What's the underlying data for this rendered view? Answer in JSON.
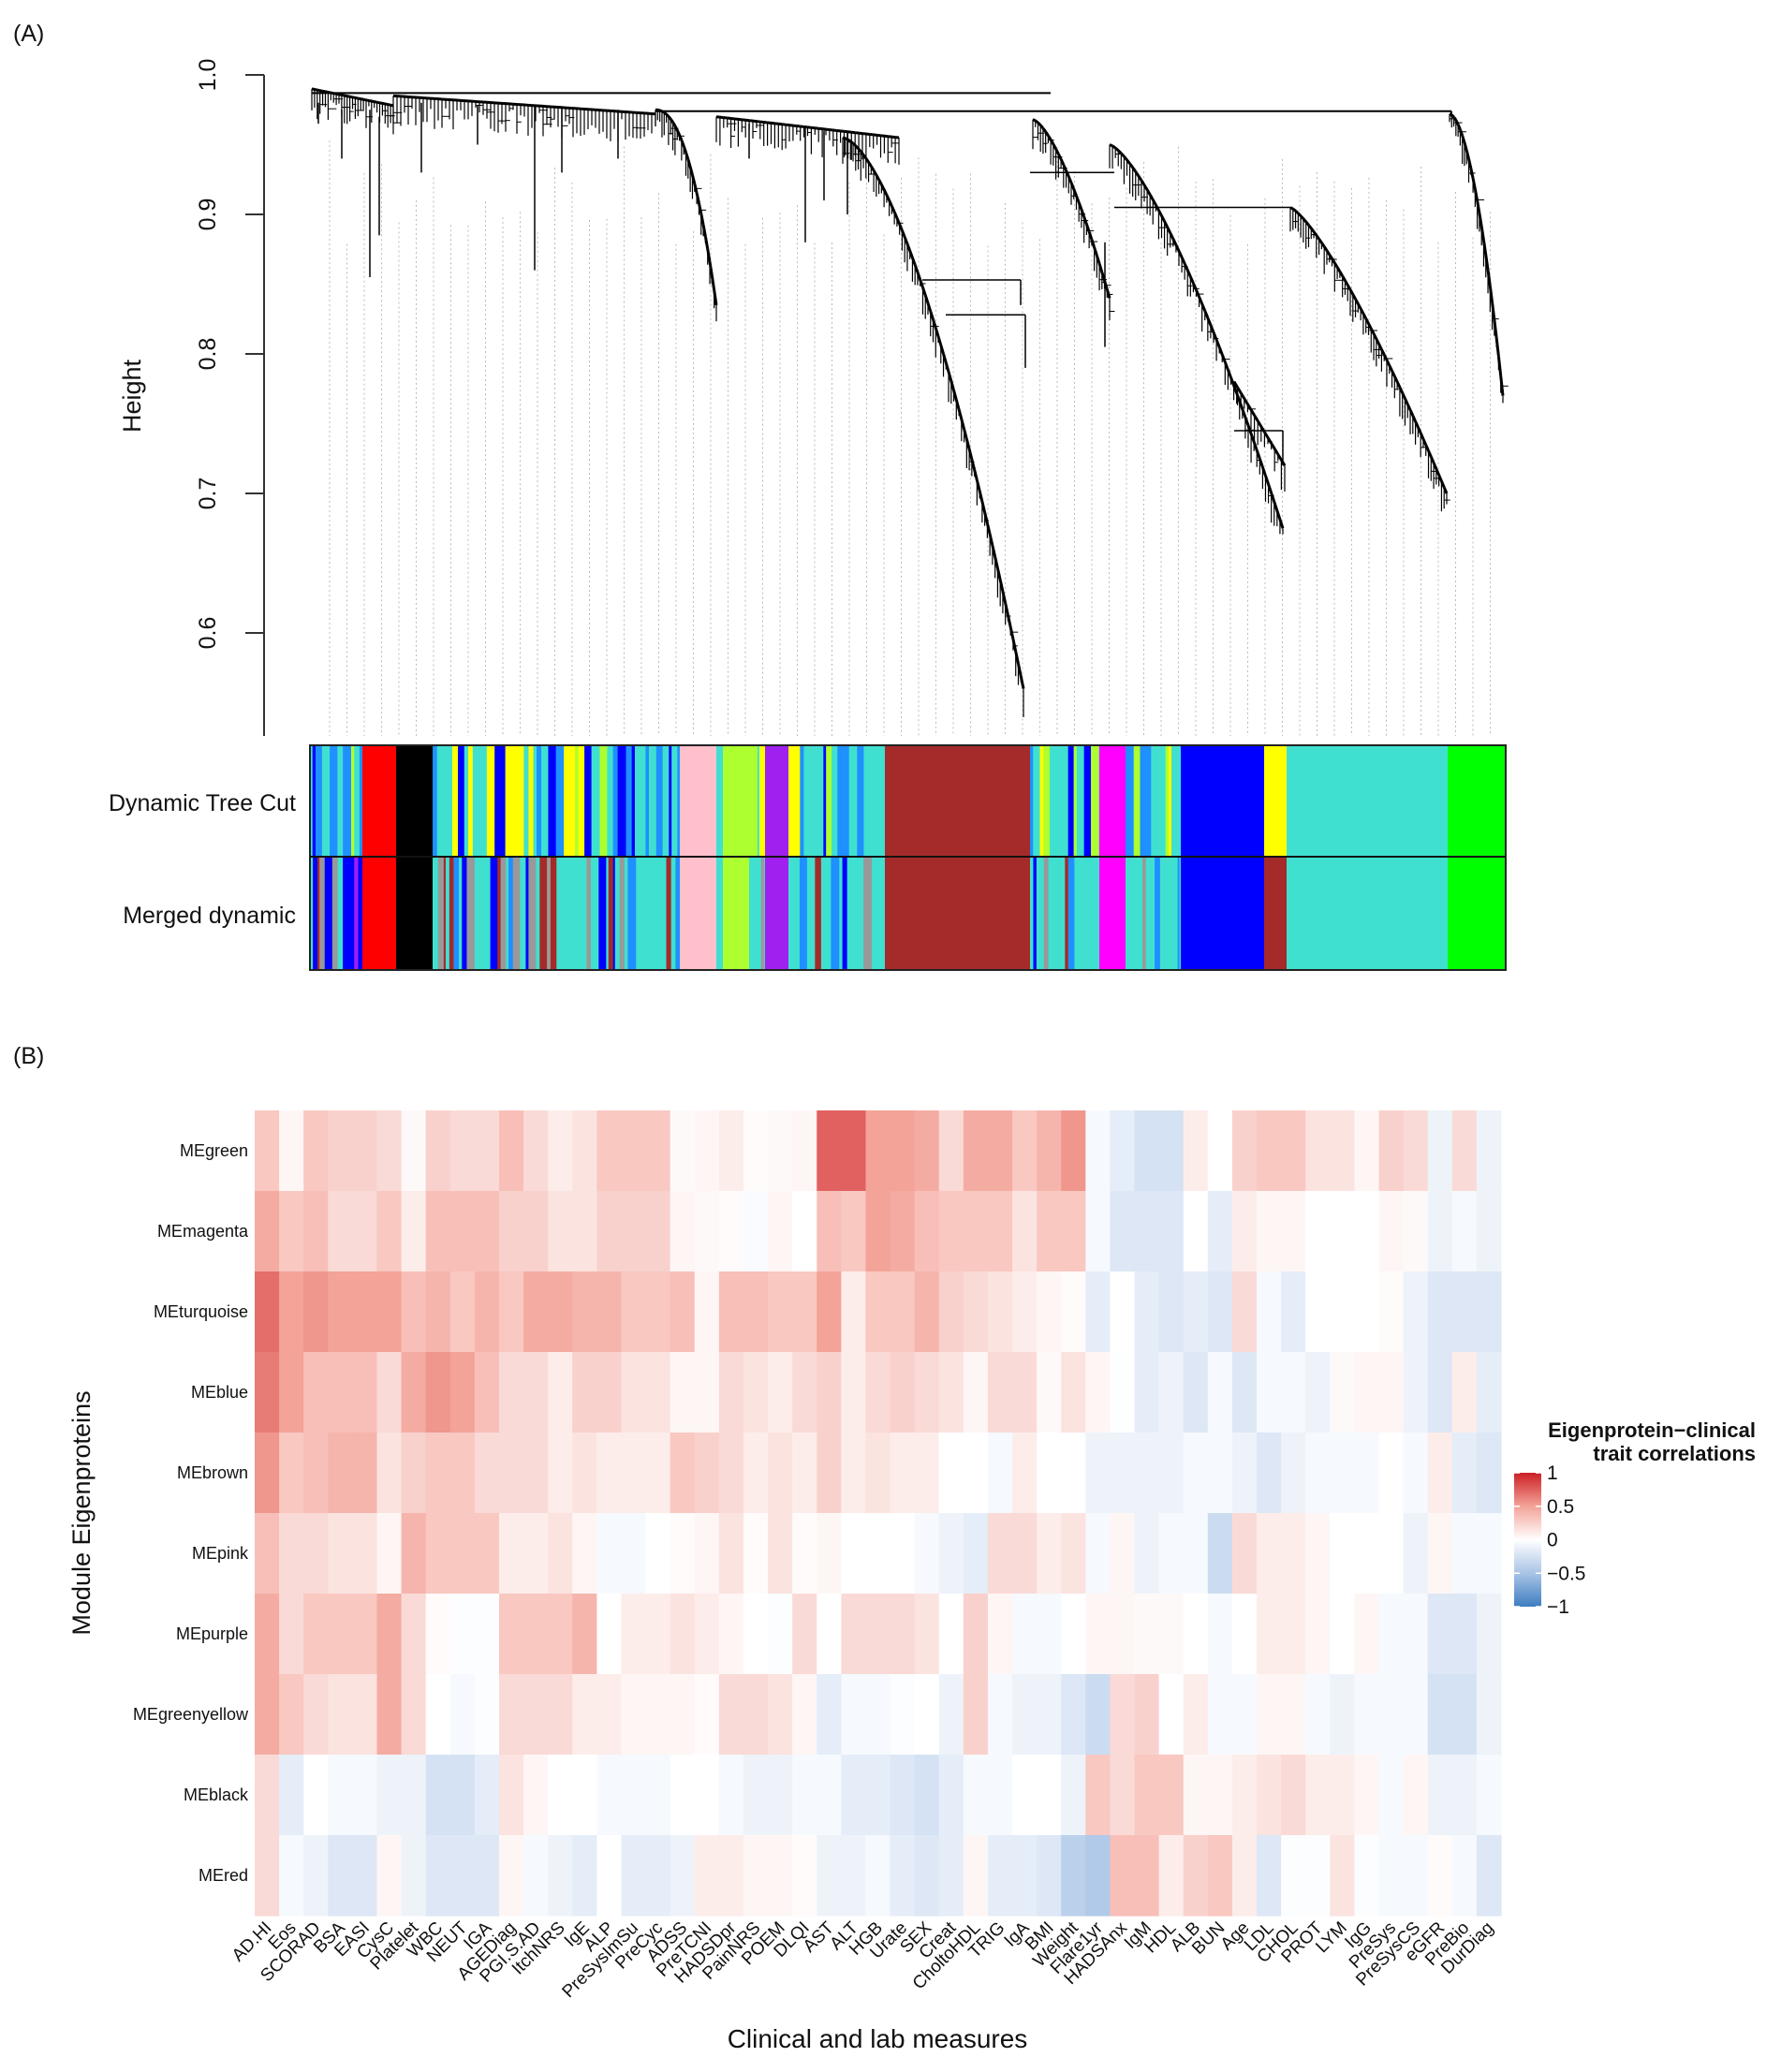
{
  "panel_a": {
    "label": "(A)",
    "ylabel": "Height",
    "yticks": [
      "1.0",
      "0.9",
      "0.8",
      "0.7",
      "0.6"
    ],
    "ytick_values": [
      1.0,
      0.9,
      0.8,
      0.7,
      0.6
    ],
    "row_labels": [
      "Dynamic Tree Cut",
      "Merged dynamic"
    ],
    "module_colors": {
      "turquoise": "#40e0d0",
      "brown": "#a52a2a",
      "blue": "#0000ff",
      "yellow": "#ffff00",
      "green": "#00ff00",
      "magenta": "#ff00ff",
      "purple": "#a020f0",
      "greenyellow": "#adff2f",
      "pink": "#ffc0cb",
      "red": "#ff0000",
      "black": "#000000",
      "grey": "#999999",
      "dodgerblue": "#1e90ff"
    }
  },
  "panel_b": {
    "label": "(B)"
  },
  "chart_data": {
    "type": "heatmap",
    "title": "",
    "xlabel": "Clinical and lab measures",
    "ylabel": "Module Eigenproteins",
    "legend": {
      "title_line1": "Eigenprotein−clinical",
      "title_line2": "trait correlations",
      "ticks": [
        "1",
        "0.5",
        "0",
        "−0.5",
        "−1"
      ],
      "tick_values": [
        1,
        0.5,
        0,
        -0.5,
        -1
      ],
      "range": [
        -1,
        1
      ],
      "placement": "right"
    },
    "colors": {
      "high": "#cc1f26",
      "mid_high": "#f3a398",
      "zero": "#ffffff",
      "mid_low": "#a9c4e6",
      "low": "#3d7dc0"
    },
    "rows": [
      "MEgreen",
      "MEmagenta",
      "MEturquoise",
      "MEblue",
      "MEbrown",
      "MEpink",
      "MEpurple",
      "MEgreenyellow",
      "MEblack",
      "MEred"
    ],
    "columns": [
      "AD.HI",
      "Eos",
      "SCORAD",
      "BSA",
      "EASI",
      "CysC",
      "Platelet",
      "WBC",
      "NEUT",
      "IGA",
      "AGEDiag",
      "PGI.S.AD",
      "ItchNRS",
      "IgE",
      "ALP",
      "PreSysImSu",
      "PreCyc",
      "ADSS",
      "PreTCNI",
      "HADSDpr",
      "PainNRS",
      "POEM",
      "DLQI",
      "AST",
      "ALT",
      "HGB",
      "Urate",
      "SEX",
      "Creat",
      "CholtoHDL",
      "TRIG",
      "IgA",
      "BMI",
      "Weight",
      "Flare1yr",
      "HADSAnx",
      "IgM",
      "HDL",
      "ALB",
      "BUN",
      "Age",
      "LDL",
      "CHOL",
      "PROT",
      "LYM",
      "IgG",
      "PreSys",
      "PreSysCS",
      "eGFR",
      "PreBio",
      "DurDiag"
    ],
    "values": [
      [
        0.3,
        0.05,
        0.3,
        0.25,
        0.25,
        0.2,
        0.03,
        0.25,
        0.2,
        0.2,
        0.35,
        0.2,
        0.1,
        0.15,
        0.3,
        0.3,
        0.3,
        0.03,
        0.05,
        0.1,
        0.02,
        0.03,
        0.05,
        0.75,
        0.75,
        0.5,
        0.5,
        0.45,
        0.2,
        0.45,
        0.45,
        0.3,
        0.4,
        0.55,
        -0.05,
        -0.15,
        -0.25,
        -0.25,
        0.1,
        0,
        0.25,
        0.3,
        0.3,
        0.15,
        0.15,
        0.05,
        0.25,
        0.2,
        -0.1,
        0.2,
        -0.1
      ],
      [
        0.45,
        0.3,
        0.35,
        0.2,
        0.2,
        0.3,
        0.1,
        0.35,
        0.35,
        0.35,
        0.25,
        0.25,
        0.15,
        0.15,
        0.25,
        0.25,
        0.25,
        0.05,
        0.03,
        0.02,
        -0.03,
        0.05,
        0,
        0.35,
        0.3,
        0.5,
        0.45,
        0.35,
        0.3,
        0.3,
        0.3,
        0.15,
        0.3,
        0.3,
        -0.05,
        -0.2,
        -0.2,
        -0.2,
        0,
        -0.15,
        0.1,
        0.05,
        0.05,
        0,
        0,
        0,
        0.05,
        0.03,
        -0.1,
        -0.05,
        -0.1
      ],
      [
        0.7,
        0.5,
        0.55,
        0.5,
        0.5,
        0.5,
        0.35,
        0.4,
        0.3,
        0.4,
        0.3,
        0.45,
        0.45,
        0.4,
        0.4,
        0.3,
        0.3,
        0.35,
        0.05,
        0.35,
        0.35,
        0.3,
        0.3,
        0.5,
        0.1,
        0.3,
        0.3,
        0.4,
        0.25,
        0.2,
        0.15,
        0.1,
        0.05,
        0.02,
        -0.15,
        0,
        -0.15,
        -0.2,
        -0.15,
        -0.2,
        0.2,
        -0.05,
        -0.15,
        0,
        0,
        0,
        0.02,
        -0.1,
        -0.2,
        -0.2,
        -0.2
      ],
      [
        0.65,
        0.5,
        0.35,
        0.35,
        0.35,
        0.2,
        0.45,
        0.55,
        0.5,
        0.35,
        0.2,
        0.2,
        0.1,
        0.25,
        0.25,
        0.15,
        0.15,
        0.05,
        0.05,
        0.2,
        0.15,
        0.1,
        0.2,
        0.25,
        0.1,
        0.2,
        0.25,
        0.2,
        0.15,
        0.05,
        0.2,
        0.2,
        0.03,
        0.15,
        0.05,
        -0.01,
        -0.15,
        -0.1,
        -0.2,
        -0.05,
        -0.2,
        -0.05,
        -0.05,
        -0.1,
        0.03,
        0.05,
        0.05,
        -0.1,
        -0.2,
        0.1,
        -0.15
      ],
      [
        0.55,
        0.3,
        0.35,
        0.4,
        0.4,
        0.15,
        0.25,
        0.3,
        0.3,
        0.2,
        0.2,
        0.2,
        0.1,
        0.15,
        0.1,
        0.1,
        0.1,
        0.3,
        0.25,
        0.2,
        0.1,
        0.15,
        0.1,
        0.25,
        0.1,
        0.15,
        0.1,
        0.1,
        0,
        0,
        -0.05,
        0.1,
        0,
        0,
        -0.1,
        -0.1,
        -0.1,
        -0.1,
        -0.05,
        -0.05,
        -0.1,
        -0.2,
        -0.1,
        -0.05,
        -0.05,
        -0.05,
        0,
        -0.05,
        0.1,
        -0.15,
        -0.2
      ],
      [
        0.35,
        0.2,
        0.2,
        0.15,
        0.15,
        0.05,
        0.4,
        0.3,
        0.3,
        0.3,
        0.1,
        0.1,
        0.15,
        0.05,
        -0.05,
        -0.05,
        0,
        0.02,
        0.05,
        0.15,
        0.02,
        0.15,
        0.02,
        0.05,
        0,
        0,
        0,
        -0.05,
        -0.1,
        -0.15,
        0.2,
        0.2,
        0.1,
        0.15,
        -0.05,
        0.05,
        -0.1,
        -0.05,
        -0.05,
        -0.3,
        0.2,
        0.1,
        0.1,
        0.05,
        0,
        0,
        0,
        -0.1,
        0.05,
        -0.05,
        -0.05
      ],
      [
        0.45,
        0.2,
        0.3,
        0.3,
        0.3,
        0.45,
        0.2,
        0.02,
        -0.02,
        -0.02,
        0.3,
        0.3,
        0.3,
        0.4,
        0,
        0.1,
        0.1,
        0.15,
        0.1,
        0.05,
        0,
        -0.02,
        0.2,
        0,
        0.2,
        0.2,
        0.2,
        0.15,
        0,
        0.25,
        0.05,
        -0.05,
        -0.05,
        0,
        0.05,
        0.05,
        0.03,
        0.03,
        0,
        -0.05,
        0,
        0.1,
        0.1,
        0.05,
        0,
        0.05,
        -0.05,
        -0.05,
        -0.2,
        -0.2,
        -0.1
      ],
      [
        0.45,
        0.3,
        0.2,
        0.15,
        0.15,
        0.45,
        0.2,
        0,
        -0.05,
        -0.02,
        0.2,
        0.2,
        0.2,
        0.1,
        0.1,
        0.05,
        0.05,
        0.05,
        0.02,
        0.2,
        0.2,
        0.15,
        0.05,
        -0.15,
        -0.05,
        -0.05,
        -0.02,
        0,
        -0.1,
        0.25,
        -0.05,
        -0.1,
        -0.1,
        -0.2,
        -0.3,
        0.2,
        0.25,
        0,
        0.1,
        -0.05,
        -0.05,
        0.05,
        0.05,
        -0.05,
        -0.1,
        -0.05,
        -0.05,
        -0.05,
        -0.25,
        -0.25,
        -0.1
      ],
      [
        0.2,
        -0.15,
        0,
        -0.05,
        -0.05,
        -0.1,
        -0.1,
        -0.25,
        -0.25,
        -0.15,
        0.15,
        0.05,
        0,
        0,
        -0.05,
        -0.05,
        -0.05,
        0,
        0,
        -0.05,
        -0.1,
        -0.1,
        -0.05,
        -0.05,
        -0.15,
        -0.15,
        -0.2,
        -0.25,
        -0.15,
        -0.05,
        -0.05,
        0,
        0,
        -0.1,
        0.3,
        0.2,
        0.3,
        0.3,
        0.05,
        0.05,
        0.1,
        0.15,
        0.2,
        0.1,
        0.1,
        0.05,
        -0.05,
        0.05,
        -0.1,
        -0.1,
        -0.05
      ],
      [
        0.2,
        -0.05,
        -0.1,
        -0.2,
        -0.2,
        0.05,
        -0.1,
        -0.2,
        -0.2,
        -0.2,
        0.05,
        -0.05,
        -0.1,
        -0.15,
        0,
        -0.15,
        -0.15,
        -0.1,
        0.1,
        0.1,
        0.05,
        0.05,
        0.02,
        -0.1,
        -0.1,
        -0.05,
        -0.15,
        -0.2,
        -0.15,
        0.05,
        -0.15,
        -0.15,
        -0.2,
        -0.4,
        -0.45,
        0.35,
        0.35,
        0.1,
        0.25,
        0.3,
        0.1,
        -0.2,
        -0.02,
        -0.02,
        0.15,
        -0.02,
        -0.05,
        -0.05,
        0.02,
        -0.05,
        -0.2
      ]
    ]
  }
}
